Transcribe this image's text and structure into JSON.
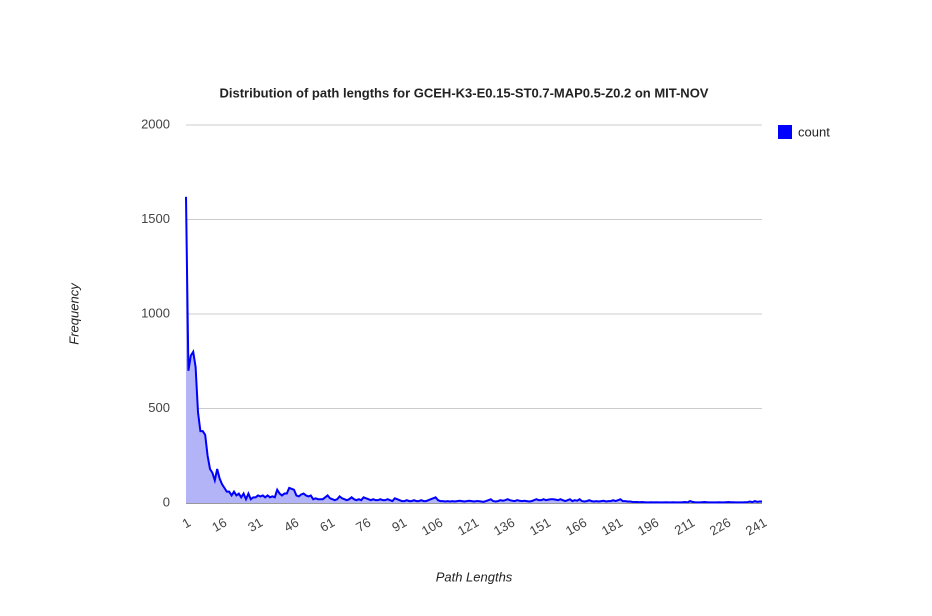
{
  "chart_data": {
    "type": "area",
    "title": "Distribution of path lengths for GCEH-K3-E0.15-ST0.7-MAP0.5-Z0.2 on MIT-NOV",
    "xlabel": "Path Lengths",
    "ylabel": "Frequency",
    "x": [
      1,
      2,
      3,
      4,
      5,
      6,
      7,
      8,
      9,
      10,
      11,
      12,
      13,
      14,
      15,
      16,
      17,
      18,
      19,
      20,
      21,
      22,
      23,
      24,
      25,
      26,
      27,
      28,
      29,
      30,
      31,
      32,
      33,
      34,
      35,
      36,
      37,
      38,
      39,
      40,
      41,
      42,
      43,
      44,
      45,
      46,
      47,
      48,
      49,
      50,
      51,
      52,
      53,
      54,
      55,
      56,
      57,
      58,
      59,
      60,
      61,
      62,
      63,
      64,
      65,
      66,
      67,
      68,
      69,
      70,
      71,
      72,
      73,
      74,
      75,
      76,
      77,
      78,
      79,
      80,
      81,
      82,
      83,
      84,
      85,
      86,
      87,
      88,
      89,
      90,
      91,
      92,
      93,
      94,
      95,
      96,
      97,
      98,
      99,
      100,
      101,
      102,
      103,
      104,
      105,
      106,
      107,
      108,
      109,
      110,
      111,
      112,
      113,
      114,
      115,
      116,
      117,
      118,
      119,
      120,
      121,
      122,
      123,
      124,
      125,
      126,
      127,
      128,
      129,
      130,
      131,
      132,
      133,
      134,
      135,
      136,
      137,
      138,
      139,
      140,
      141,
      142,
      143,
      144,
      145,
      146,
      147,
      148,
      149,
      150,
      151,
      152,
      153,
      154,
      155,
      156,
      157,
      158,
      159,
      160,
      161,
      162,
      163,
      164,
      165,
      166,
      167,
      168,
      169,
      170,
      171,
      172,
      173,
      174,
      175,
      176,
      177,
      178,
      179,
      180,
      181,
      182,
      183,
      184,
      185,
      186,
      187,
      188,
      189,
      190,
      191,
      192,
      193,
      194,
      195,
      196,
      197,
      198,
      199,
      200,
      201,
      202,
      203,
      204,
      205,
      206,
      207,
      208,
      209,
      210,
      211,
      212,
      213,
      214,
      215,
      216,
      217,
      218,
      219,
      220,
      221,
      222,
      223,
      224,
      225,
      226,
      227,
      228,
      229,
      230,
      231,
      232,
      233,
      234,
      235,
      236,
      237,
      238,
      239,
      240,
      241
    ],
    "series": [
      {
        "name": "count",
        "color": "#0000ff",
        "fill": "#b3b3f7",
        "values": [
          1620,
          700,
          780,
          800,
          720,
          480,
          380,
          380,
          360,
          250,
          180,
          160,
          120,
          180,
          130,
          100,
          80,
          60,
          60,
          40,
          60,
          40,
          50,
          30,
          50,
          20,
          50,
          20,
          30,
          30,
          40,
          35,
          40,
          30,
          40,
          30,
          35,
          30,
          70,
          50,
          40,
          50,
          50,
          80,
          75,
          70,
          40,
          35,
          45,
          50,
          40,
          35,
          40,
          20,
          25,
          20,
          20,
          20,
          30,
          40,
          25,
          20,
          15,
          20,
          35,
          25,
          20,
          15,
          20,
          30,
          20,
          15,
          20,
          15,
          30,
          25,
          20,
          15,
          20,
          15,
          15,
          20,
          15,
          15,
          20,
          15,
          10,
          25,
          20,
          15,
          10,
          10,
          15,
          10,
          10,
          15,
          10,
          10,
          15,
          10,
          10,
          15,
          20,
          25,
          30,
          15,
          10,
          10,
          8,
          10,
          8,
          10,
          8,
          10,
          12,
          10,
          8,
          10,
          12,
          10,
          8,
          10,
          10,
          8,
          6,
          10,
          15,
          20,
          10,
          8,
          10,
          15,
          12,
          15,
          20,
          15,
          12,
          10,
          15,
          12,
          10,
          12,
          10,
          8,
          10,
          15,
          20,
          15,
          15,
          20,
          15,
          18,
          20,
          20,
          18,
          15,
          20,
          15,
          10,
          15,
          20,
          10,
          15,
          12,
          20,
          10,
          8,
          10,
          15,
          10,
          8,
          10,
          8,
          10,
          12,
          8,
          10,
          10,
          15,
          10,
          15,
          20,
          10,
          10,
          8,
          8,
          6,
          5,
          5,
          4,
          5,
          4,
          3,
          3,
          4,
          3,
          4,
          3,
          3,
          3,
          4,
          3,
          3,
          4,
          3,
          3,
          3,
          4,
          5,
          3,
          10,
          6,
          4,
          3,
          3,
          4,
          5,
          4,
          3,
          3,
          3,
          3,
          4,
          3,
          3,
          4,
          5,
          4,
          4,
          3,
          3,
          3,
          3,
          4,
          5,
          8,
          4,
          10,
          6,
          8,
          8
        ]
      }
    ],
    "xlim": [
      1,
      241
    ],
    "xticks": [
      1,
      16,
      31,
      46,
      61,
      76,
      91,
      106,
      121,
      136,
      151,
      166,
      181,
      196,
      211,
      226,
      241
    ],
    "ylim": [
      0,
      2000
    ],
    "yticks": [
      0,
      500,
      1000,
      1500,
      2000
    ],
    "grid": true,
    "legend": "right"
  }
}
